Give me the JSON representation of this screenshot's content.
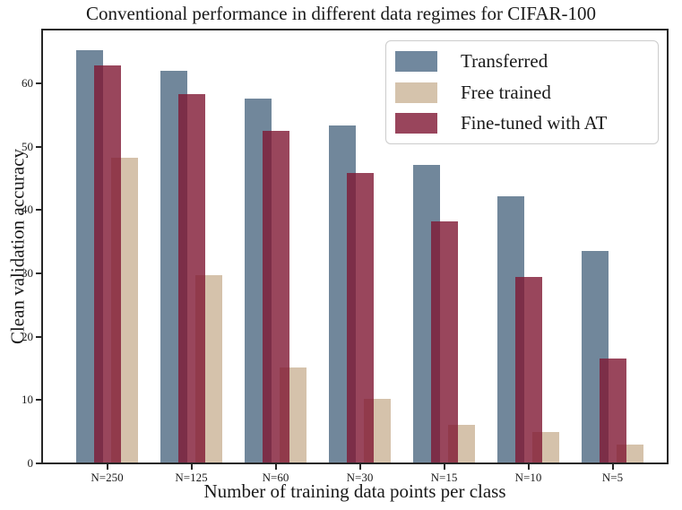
{
  "chart_data": {
    "type": "bar",
    "title": "Conventional performance in different data regimes for CIFAR-100",
    "xlabel": "Number of training data points per class",
    "ylabel": "Clean validation accuracy",
    "categories": [
      "N=250",
      "N=125",
      "N=60",
      "N=30",
      "N=15",
      "N=10",
      "N=5"
    ],
    "series": [
      {
        "name": "Transferred",
        "fill": "#71879B",
        "swatch": "#71889E",
        "slot": 0,
        "z": 1,
        "values": [
          65.3,
          62.0,
          57.6,
          53.3,
          47.2,
          42.2,
          33.6
        ]
      },
      {
        "name": "Free trained",
        "fill": "#D5C2AB",
        "swatch": "#D5C3AC",
        "slot": 2,
        "z": 2,
        "values": [
          48.3,
          29.7,
          15.1,
          10.2,
          6.1,
          4.9,
          3.0
        ]
      },
      {
        "name": "Fine-tuned with AT",
        "fill": "rgba(128,24,51,0.8)",
        "swatch": "#99455C",
        "slot": 1,
        "z": 3,
        "values": [
          62.9,
          58.3,
          52.5,
          45.8,
          38.2,
          29.4,
          16.6
        ]
      }
    ],
    "yticks": [
      0,
      10,
      20,
      30,
      40,
      50,
      60
    ],
    "ylim": [
      0,
      68.5
    ],
    "grid": false,
    "bars_overlap": true,
    "legend_position": "upper right"
  },
  "colors": {
    "spine": "#262626",
    "text": "#1a1a1a",
    "legend_border": "#cccccc",
    "background": "#ffffff"
  }
}
